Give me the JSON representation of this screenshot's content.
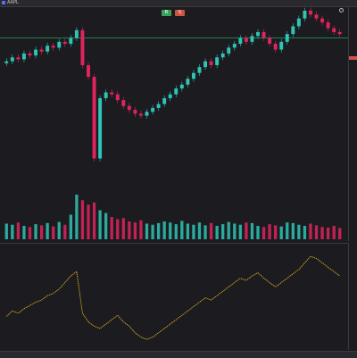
{
  "title_bar": {
    "title": "AAPL"
  },
  "trade_panel": {
    "buy_label": "B",
    "sell_label": "S"
  },
  "oscillator": {
    "title": ""
  },
  "status_bar": {
    "left_text": "",
    "right_text": ""
  },
  "colors": {
    "bull": "#2ec4b6",
    "bear": "#e0245e",
    "osc_line": "#e8b820",
    "level_line": "#1fa35a",
    "background": "#1c1c20"
  },
  "chart_data": {
    "type": "candlestick",
    "series": [
      {
        "name": "price",
        "values": [
          124,
          126,
          125,
          128,
          127,
          130,
          129,
          132,
          131,
          134,
          133,
          136,
          140,
          122,
          116,
          74,
          105,
          108,
          107,
          104,
          101,
          99,
          97,
          96,
          98,
          100,
          102,
          105,
          107,
          110,
          112,
          115,
          118,
          121,
          124,
          122,
          126,
          128,
          131,
          133,
          136,
          134,
          137,
          139,
          136,
          133,
          130,
          134,
          138,
          142,
          146,
          150,
          148,
          146,
          144,
          141,
          139,
          138
        ]
      }
    ],
    "volume": [
      28,
      26,
      30,
      24,
      22,
      27,
      25,
      29,
      23,
      31,
      26,
      44,
      80,
      70,
      62,
      66,
      52,
      47,
      40,
      36,
      38,
      32,
      30,
      34,
      28,
      26,
      29,
      32,
      30,
      27,
      33,
      28,
      26,
      30,
      25,
      29,
      24,
      27,
      31,
      28,
      26,
      30,
      29,
      24,
      22,
      27,
      25,
      23,
      30,
      29,
      26,
      24,
      28,
      25,
      22,
      21,
      24,
      20
    ],
    "oscillator": [
      55,
      60,
      58,
      62,
      65,
      68,
      70,
      74,
      76,
      80,
      86,
      92,
      96,
      58,
      50,
      46,
      44,
      48,
      52,
      56,
      50,
      46,
      40,
      36,
      34,
      36,
      40,
      44,
      48,
      52,
      56,
      60,
      64,
      68,
      72,
      70,
      74,
      78,
      82,
      86,
      90,
      88,
      92,
      95,
      90,
      86,
      82,
      86,
      90,
      94,
      98,
      104,
      110,
      108,
      104,
      100,
      96,
      92
    ]
  }
}
